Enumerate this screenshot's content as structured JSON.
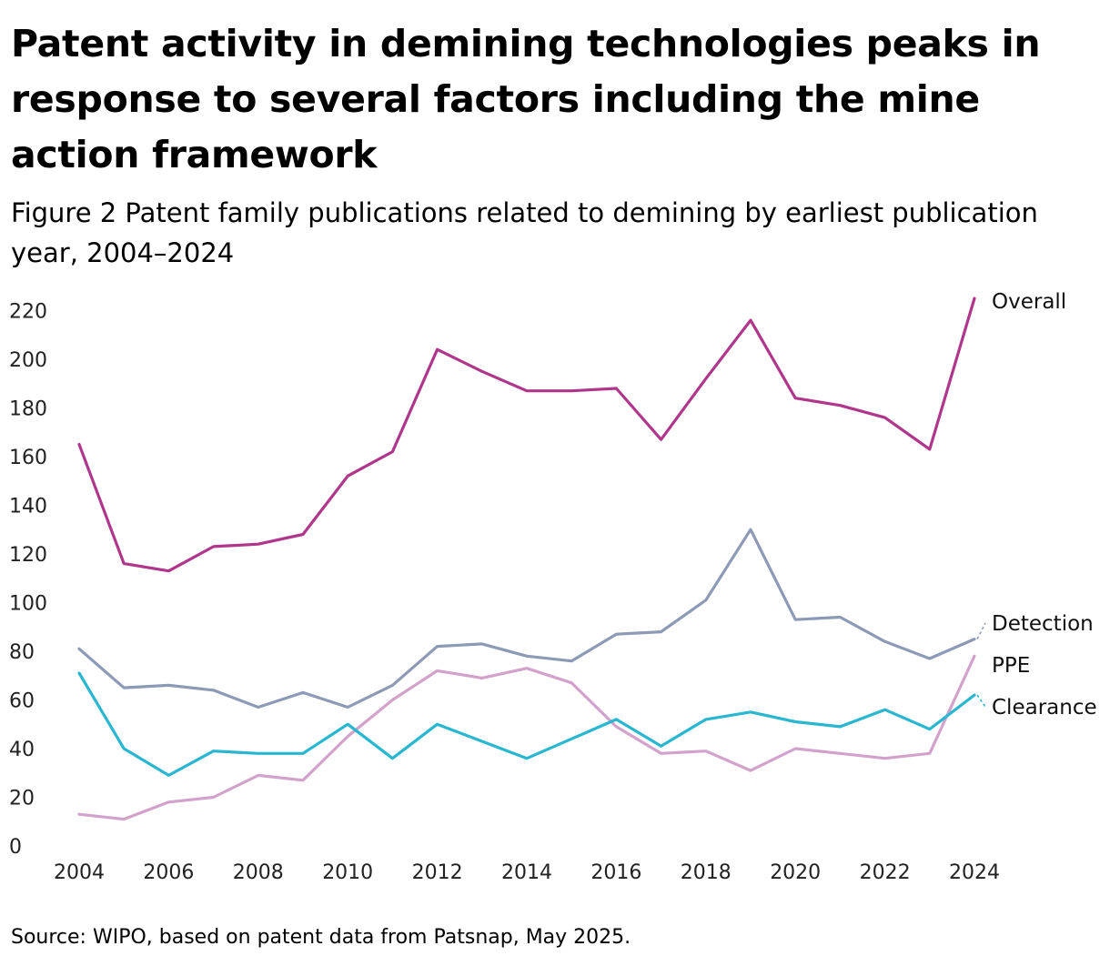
{
  "header": {
    "title": "Patent activity in demining technologies peaks in response to several factors including the mine action framework",
    "subtitle": "Figure 2 Patent family publications related to demining by earliest publication year, 2004–2024"
  },
  "footer": {
    "source": "Source: WIPO, based on patent data from Patsnap, May 2025."
  },
  "chart_data": {
    "type": "line",
    "title": "Patent activity in demining technologies peaks in response to several factors including the mine action framework",
    "subtitle": "Figure 2 Patent family publications related to demining by earliest publication year, 2004–2024",
    "xlabel": "",
    "ylabel": "",
    "x": [
      2004,
      2005,
      2006,
      2007,
      2008,
      2009,
      2010,
      2011,
      2012,
      2013,
      2014,
      2015,
      2016,
      2017,
      2018,
      2019,
      2020,
      2021,
      2022,
      2023,
      2024
    ],
    "x_ticks": [
      "2004",
      "2006",
      "2008",
      "2010",
      "2012",
      "2014",
      "2016",
      "2018",
      "2020",
      "2022",
      "2024"
    ],
    "y_ticks": [
      "0",
      "20",
      "40",
      "60",
      "80",
      "100",
      "120",
      "140",
      "160",
      "180",
      "200",
      "220"
    ],
    "xlim": [
      2004,
      2024
    ],
    "ylim": [
      0,
      230
    ],
    "grid": false,
    "legend": "direct labels at line ends (right)",
    "series": [
      {
        "name": "Overall",
        "color": "#b0368c",
        "values": [
          165,
          116,
          113,
          123,
          124,
          128,
          152,
          162,
          204,
          195,
          187,
          187,
          188,
          167,
          192,
          216,
          184,
          181,
          176,
          163,
          225
        ]
      },
      {
        "name": "Detection",
        "color": "#8c9ab5",
        "values": [
          81,
          65,
          66,
          64,
          57,
          63,
          57,
          66,
          82,
          83,
          78,
          76,
          87,
          88,
          101,
          130,
          93,
          94,
          84,
          77,
          85
        ]
      },
      {
        "name": "PPE",
        "color": "#d3a2cb",
        "values": [
          13,
          11,
          18,
          20,
          29,
          27,
          45,
          60,
          72,
          69,
          73,
          67,
          49,
          38,
          39,
          31,
          40,
          38,
          36,
          38,
          78
        ]
      },
      {
        "name": "Clearance",
        "color": "#29b6d1",
        "values": [
          71,
          40,
          29,
          39,
          38,
          38,
          50,
          36,
          50,
          43,
          36,
          44,
          52,
          41,
          52,
          55,
          51,
          49,
          56,
          48,
          62
        ]
      }
    ]
  }
}
